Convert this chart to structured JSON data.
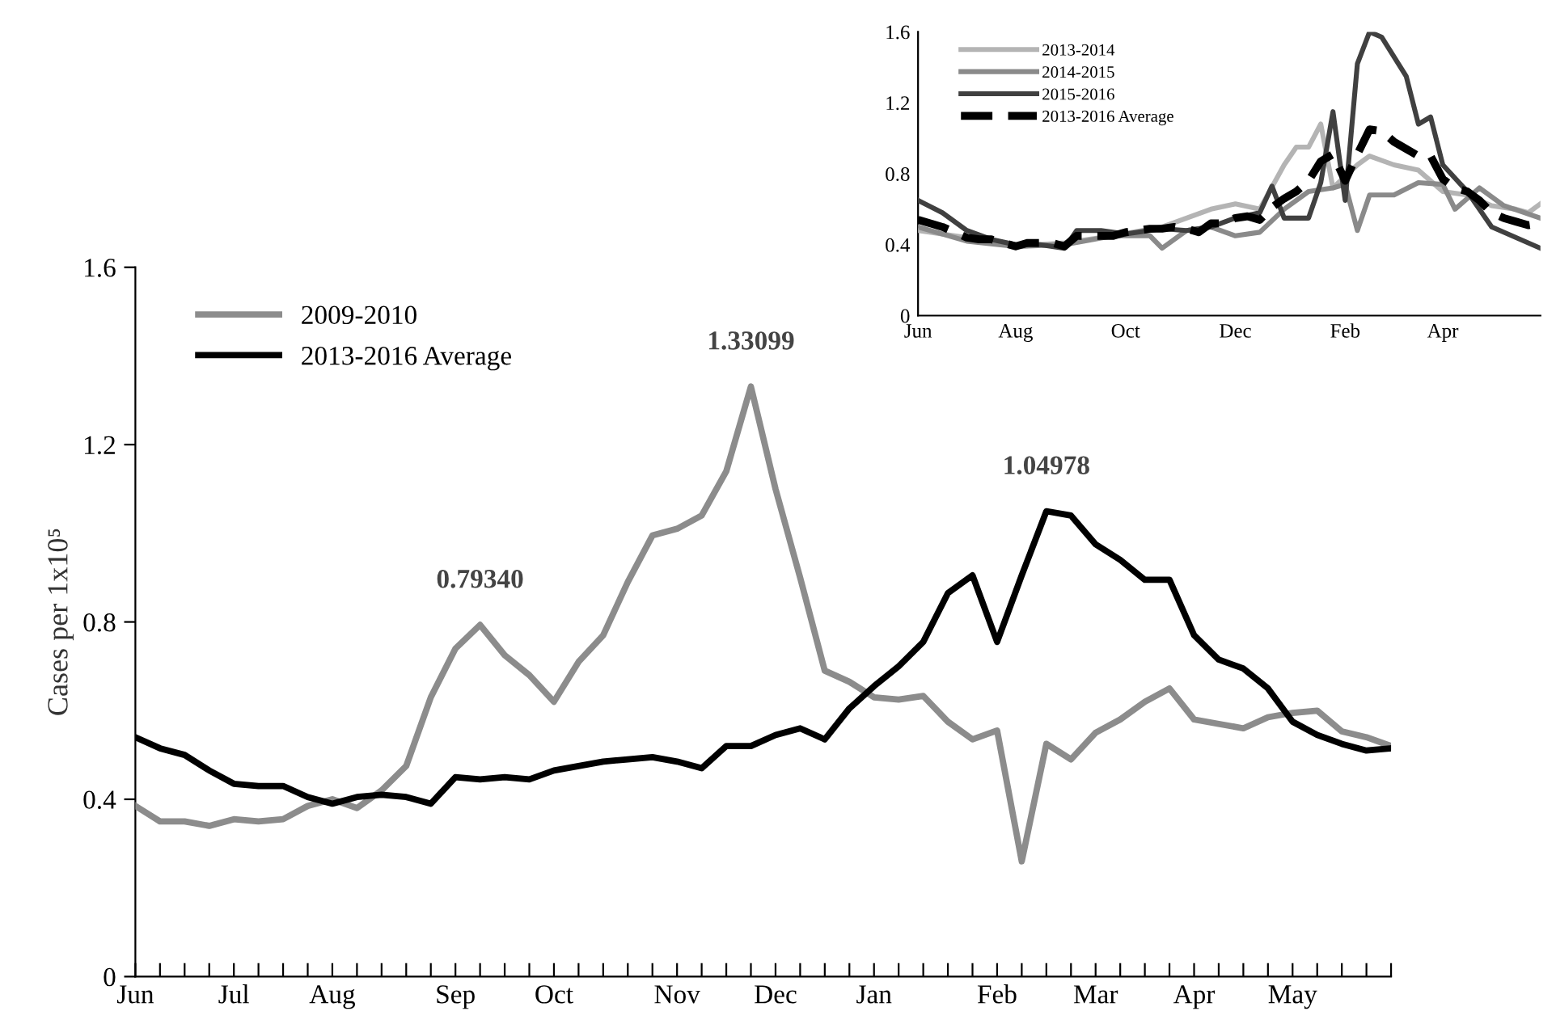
{
  "chart_data": [
    {
      "type": "line",
      "ylabel": "Cases per 1x10⁵",
      "legend": "top left",
      "grid": false,
      "marker": "none",
      "categories": [
        "Jun",
        null,
        null,
        null,
        "Jul",
        null,
        null,
        null,
        "Aug",
        null,
        null,
        null,
        null,
        "Sep",
        null,
        null,
        null,
        "Oct",
        null,
        null,
        null,
        null,
        "Nov",
        null,
        null,
        null,
        "Dec",
        null,
        null,
        null,
        "Jan",
        null,
        null,
        null,
        null,
        "Feb",
        null,
        null,
        null,
        "Mar",
        null,
        null,
        null,
        "Apr",
        null,
        null,
        null,
        "May",
        null,
        null,
        null,
        null
      ],
      "ylim": [
        0,
        1.6
      ],
      "yticks": [
        0,
        0.4,
        0.8,
        1.2,
        1.6
      ],
      "series": [
        {
          "name": "2009-2010",
          "color": "#8c8c8c",
          "line_style": "solid",
          "values": [
            0.385,
            0.35,
            0.35,
            0.34,
            0.355,
            0.35,
            0.355,
            0.385,
            0.4,
            0.38,
            0.42,
            0.475,
            0.63,
            0.74,
            0.7934,
            0.725,
            0.68,
            0.62,
            0.71,
            0.77,
            0.89,
            0.995,
            1.01,
            1.04,
            1.14,
            1.33099,
            1.1,
            0.9,
            0.69,
            0.665,
            0.63,
            0.625,
            0.633,
            0.575,
            0.535,
            0.555,
            0.26,
            0.525,
            0.49,
            0.55,
            0.58,
            0.62,
            0.65,
            0.58,
            0.57,
            0.56,
            0.585,
            0.595,
            0.6,
            0.553,
            0.54,
            0.52
          ]
        },
        {
          "name": "2013-2016 Average",
          "color": "#000000",
          "line_style": "solid",
          "values": [
            0.54,
            0.515,
            0.5,
            0.465,
            0.435,
            0.43,
            0.43,
            0.405,
            0.39,
            0.405,
            0.41,
            0.405,
            0.39,
            0.45,
            0.445,
            0.45,
            0.445,
            0.465,
            0.475,
            0.485,
            0.49,
            0.495,
            0.485,
            0.47,
            0.52,
            0.52,
            0.545,
            0.56,
            0.535,
            0.605,
            0.655,
            0.7,
            0.755,
            0.865,
            0.905,
            0.755,
            0.905,
            1.04978,
            1.04,
            0.975,
            0.94,
            0.895,
            0.895,
            0.77,
            0.715,
            0.695,
            0.65,
            0.575,
            0.545,
            0.525,
            0.51,
            0.515
          ]
        }
      ],
      "annotations": [
        {
          "text": "0.79340",
          "y": 0.7934
        },
        {
          "text": "1.33099",
          "y": 1.33099
        },
        {
          "text": "1.04978",
          "y": 1.04978
        }
      ]
    },
    {
      "type": "line",
      "legend": "top left",
      "grid": false,
      "marker": "none",
      "categories": [
        "Jun",
        null,
        null,
        null,
        null,
        null,
        null,
        null,
        "Aug",
        null,
        null,
        null,
        null,
        null,
        null,
        null,
        null,
        "Oct",
        null,
        null,
        null,
        null,
        null,
        null,
        null,
        null,
        "Dec",
        null,
        null,
        null,
        null,
        null,
        null,
        null,
        null,
        "Feb",
        null,
        null,
        null,
        null,
        null,
        null,
        null,
        "Apr",
        null,
        null,
        null,
        null,
        null,
        null,
        null,
        null
      ],
      "ylim": [
        0,
        1.6
      ],
      "yticks": [
        0,
        0.4,
        0.8,
        1.2,
        1.6
      ],
      "series": [
        {
          "name": "2013-2014",
          "color": "#b4b4b4",
          "line_style": "solid",
          "values": [
            0.48,
            null,
            null,
            null,
            0.44,
            null,
            null,
            null,
            0.39,
            null,
            null,
            null,
            0.41,
            null,
            null,
            null,
            0.45,
            null,
            null,
            null,
            0.5,
            null,
            null,
            null,
            0.6,
            null,
            0.63,
            null,
            0.6,
            null,
            0.85,
            0.95,
            0.95,
            1.08,
            0.72,
            null,
            0.85,
            0.9,
            null,
            0.85,
            null,
            0.82,
            null,
            0.7,
            null,
            0.68,
            null,
            0.62,
            null,
            0.6,
            0.58,
            0.63
          ]
        },
        {
          "name": "2014-2015",
          "color": "#8a8a8a",
          "line_style": "solid",
          "values": [
            0.5,
            null,
            null,
            null,
            0.42,
            null,
            null,
            null,
            0.39,
            null,
            null,
            null,
            0.4,
            null,
            null,
            null,
            0.45,
            null,
            null,
            0.45,
            0.38,
            null,
            0.48,
            null,
            0.5,
            null,
            0.45,
            null,
            0.47,
            null,
            0.6,
            null,
            0.7,
            null,
            0.72,
            0.74,
            0.48,
            0.68,
            null,
            0.68,
            null,
            0.75,
            null,
            0.74,
            0.6,
            null,
            0.72,
            null,
            0.62,
            null,
            null,
            0.55
          ]
        },
        {
          "name": "2015-2016",
          "color": "#404040",
          "line_style": "solid",
          "values": [
            0.65,
            null,
            0.58,
            null,
            0.48,
            null,
            0.43,
            null,
            0.4,
            null,
            0.4,
            null,
            0.38,
            0.48,
            null,
            0.48,
            null,
            0.46,
            null,
            null,
            0.49,
            null,
            0.48,
            null,
            0.5,
            null,
            0.55,
            null,
            0.58,
            0.73,
            0.55,
            null,
            0.55,
            0.75,
            1.15,
            0.65,
            1.42,
            1.6,
            1.57,
            null,
            1.35,
            1.08,
            1.12,
            0.85,
            null,
            0.7,
            null,
            0.5,
            null,
            null,
            null,
            0.38
          ]
        },
        {
          "name": "2013-2016 Average",
          "color": "#000000",
          "line_style": "dashed",
          "values": [
            0.54,
            0.52,
            0.5,
            0.47,
            0.44,
            0.43,
            0.43,
            0.41,
            0.39,
            0.41,
            0.41,
            0.41,
            0.39,
            0.45,
            0.45,
            0.45,
            0.45,
            0.47,
            0.48,
            0.49,
            0.49,
            0.5,
            0.49,
            0.47,
            0.52,
            0.52,
            0.55,
            0.56,
            0.54,
            0.61,
            0.66,
            0.7,
            0.76,
            0.87,
            0.91,
            0.76,
            0.91,
            1.05,
            1.04,
            0.98,
            0.94,
            0.9,
            0.9,
            0.77,
            0.72,
            0.7,
            0.65,
            0.58,
            0.55,
            0.53,
            0.51,
            0.52
          ]
        }
      ]
    }
  ]
}
